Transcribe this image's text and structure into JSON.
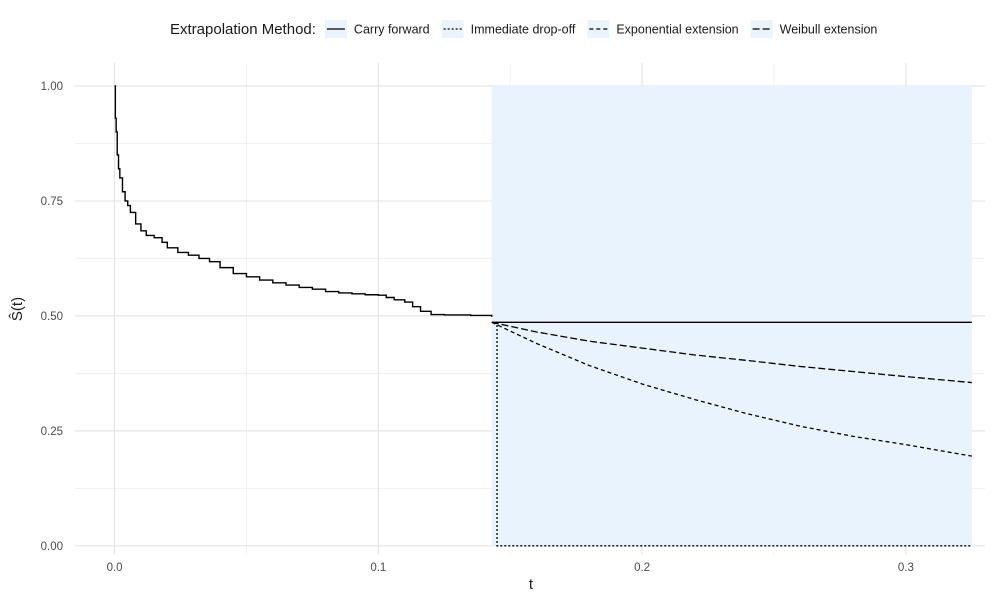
{
  "chart_data": {
    "type": "line",
    "xlabel": "t",
    "ylabel": "Ŝ(t)",
    "xlim": [
      -0.015,
      0.33
    ],
    "ylim": [
      -0.02,
      1.05
    ],
    "x_ticks": [
      0.0,
      0.1,
      0.2,
      0.3
    ],
    "x_tick_labels": [
      "0.0",
      "0.1",
      "0.2",
      "0.3"
    ],
    "y_ticks": [
      0.0,
      0.25,
      0.5,
      0.75,
      1.0
    ],
    "y_tick_labels": [
      "0.00",
      "0.25",
      "0.50",
      "0.75",
      "1.00"
    ],
    "grid": true,
    "legend": {
      "title": "Extrapolation Method:",
      "position": "top",
      "entries": [
        {
          "label": "Carry forward",
          "dash": "solid"
        },
        {
          "label": "Immediate drop-off",
          "dash": "dotted"
        },
        {
          "label": "Exponential extension",
          "dash": "dashed"
        },
        {
          "label": "Weibull extension",
          "dash": "longdash"
        }
      ]
    },
    "extrapolation_region": {
      "x": [
        0.143,
        0.325
      ],
      "y": [
        0.0,
        1.0
      ],
      "color": "#e8f3fd"
    },
    "line_color": "#000000",
    "km_curve": {
      "x": [
        0,
        0.0003,
        0.0006,
        0.001,
        0.0015,
        0.002,
        0.003,
        0.004,
        0.005,
        0.006,
        0.008,
        0.01,
        0.012,
        0.015,
        0.018,
        0.02,
        0.024,
        0.028,
        0.032,
        0.036,
        0.04,
        0.045,
        0.05,
        0.055,
        0.06,
        0.065,
        0.07,
        0.075,
        0.08,
        0.085,
        0.09,
        0.095,
        0.1,
        0.103,
        0.106,
        0.11,
        0.113,
        0.116,
        0.12,
        0.125,
        0.13,
        0.135,
        0.14,
        0.143
      ],
      "y": [
        1.0,
        0.93,
        0.9,
        0.85,
        0.82,
        0.8,
        0.77,
        0.75,
        0.74,
        0.725,
        0.7,
        0.685,
        0.675,
        0.67,
        0.66,
        0.648,
        0.638,
        0.632,
        0.625,
        0.618,
        0.605,
        0.592,
        0.585,
        0.578,
        0.572,
        0.567,
        0.562,
        0.558,
        0.553,
        0.55,
        0.548,
        0.546,
        0.545,
        0.54,
        0.535,
        0.53,
        0.52,
        0.51,
        0.503,
        0.502,
        0.502,
        0.501,
        0.501,
        0.498
      ]
    },
    "series": [
      {
        "name": "Carry forward",
        "dash": "solid",
        "x": [
          0.143,
          0.325
        ],
        "y": [
          0.486,
          0.486
        ]
      },
      {
        "name": "Immediate drop-off",
        "dash": "dotted",
        "x": [
          0.143,
          0.145,
          0.145,
          0.325
        ],
        "y": [
          0.486,
          0.486,
          0.0,
          0.0
        ]
      },
      {
        "name": "Exponential extension",
        "dash": "dashed",
        "x": [
          0.143,
          0.16,
          0.18,
          0.2,
          0.22,
          0.24,
          0.26,
          0.28,
          0.3,
          0.325
        ],
        "y": [
          0.486,
          0.44,
          0.392,
          0.352,
          0.318,
          0.287,
          0.26,
          0.238,
          0.22,
          0.195
        ]
      },
      {
        "name": "Weibull extension",
        "dash": "longdash",
        "x": [
          0.143,
          0.16,
          0.18,
          0.2,
          0.22,
          0.24,
          0.26,
          0.28,
          0.3,
          0.325
        ],
        "y": [
          0.486,
          0.465,
          0.445,
          0.43,
          0.415,
          0.403,
          0.39,
          0.379,
          0.368,
          0.355
        ]
      }
    ]
  }
}
